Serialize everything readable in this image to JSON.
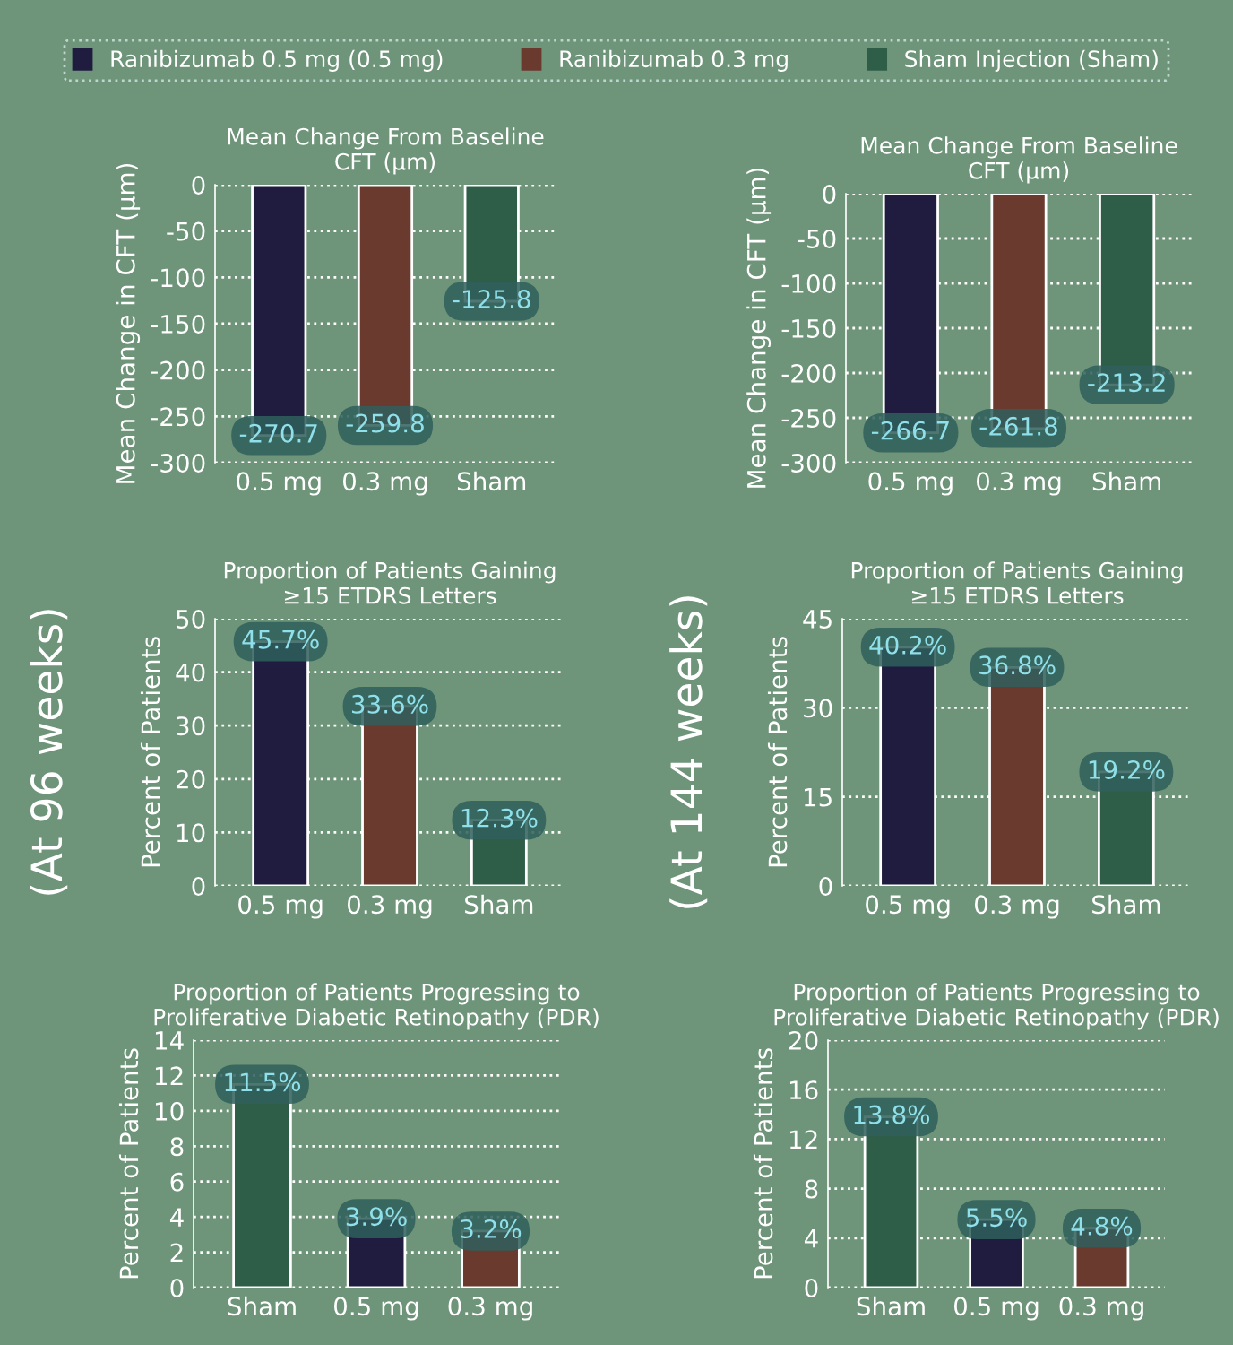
{
  "chart_data": [
    {
      "type": "bar",
      "title": "Mean Change From Baseline\nCFT (µm)",
      "ylabel": "Mean Change in CFT (µm)",
      "categories": [
        "0.5 mg",
        "0.3 mg",
        "Sham"
      ],
      "series": [
        {
          "name": "Ranibizumab 0.5 mg (0.5 mg)",
          "color": "#1f1c3f",
          "values": [
            -270.7,
            null,
            null
          ],
          "value_labels": [
            "-270.7",
            null,
            null
          ]
        },
        {
          "name": "Ranibizumab 0.3 mg",
          "color": "#6a3a2f",
          "values": [
            null,
            -259.8,
            null
          ],
          "value_labels": [
            null,
            "-259.8",
            null
          ]
        },
        {
          "name": "Sham Injection (Sham)",
          "color": "#2e5e48",
          "values": [
            null,
            null,
            -125.8
          ],
          "value_labels": [
            null,
            null,
            "-125.8"
          ]
        }
      ],
      "ylim": [
        -300,
        0
      ],
      "yticks": [
        -300,
        -250,
        -200,
        -150,
        -100,
        -50,
        0
      ],
      "grid": "y",
      "legend": "top"
    },
    {
      "type": "bar",
      "title": "Mean Change From Baseline\nCFT (µm)",
      "ylabel": "Mean Change in CFT (µm)",
      "categories": [
        "0.5 mg",
        "0.3 mg",
        "Sham"
      ],
      "series": [
        {
          "color": "#1f1c3f",
          "values": [
            -266.7,
            null,
            null
          ],
          "value_labels": [
            "-266.7",
            null,
            null
          ]
        },
        {
          "color": "#6a3a2f",
          "values": [
            null,
            -261.8,
            null
          ],
          "value_labels": [
            null,
            "-261.8",
            null
          ]
        },
        {
          "color": "#2e5e48",
          "values": [
            null,
            null,
            -213.2
          ],
          "value_labels": [
            null,
            null,
            "-213.2"
          ]
        }
      ],
      "ylim": [
        -300,
        0
      ],
      "yticks": [
        -300,
        -250,
        -200,
        -150,
        -100,
        -50,
        0
      ],
      "grid": "y"
    },
    {
      "type": "bar",
      "title": "Proportion of Patients Gaining\n≥15 ETDRS Letters",
      "ylabel": "Percent of Patients",
      "categories": [
        "0.5 mg",
        "0.3 mg",
        "Sham"
      ],
      "series": [
        {
          "color": "#1f1c3f",
          "values": [
            45.7,
            null,
            null
          ],
          "value_labels": [
            "45.7%",
            null,
            null
          ]
        },
        {
          "color": "#6a3a2f",
          "values": [
            null,
            33.6,
            null
          ],
          "value_labels": [
            null,
            "33.6%",
            null
          ]
        },
        {
          "color": "#2e5e48",
          "values": [
            null,
            null,
            12.3
          ],
          "value_labels": [
            null,
            null,
            "12.3%"
          ]
        }
      ],
      "ylim": [
        0,
        50
      ],
      "yticks": [
        0,
        10,
        20,
        30,
        40,
        50
      ],
      "grid": "y",
      "annotations": [
        "(At 96 weeks)"
      ]
    },
    {
      "type": "bar",
      "title": "Proportion of Patients Gaining\n≥15 ETDRS Letters",
      "ylabel": "Percent of Patients",
      "categories": [
        "0.5 mg",
        "0.3 mg",
        "Sham"
      ],
      "series": [
        {
          "color": "#1f1c3f",
          "values": [
            40.2,
            null,
            null
          ],
          "value_labels": [
            "40.2%",
            null,
            null
          ]
        },
        {
          "color": "#6a3a2f",
          "values": [
            null,
            36.8,
            null
          ],
          "value_labels": [
            null,
            "36.8%",
            null
          ]
        },
        {
          "color": "#2e5e48",
          "values": [
            null,
            null,
            19.2
          ],
          "value_labels": [
            null,
            null,
            "19.2%"
          ]
        }
      ],
      "ylim": [
        0,
        45
      ],
      "yticks": [
        0,
        15,
        30,
        45
      ],
      "grid": "y",
      "annotations": [
        "(At 144 weeks)"
      ]
    },
    {
      "type": "bar",
      "title": "Proportion of Patients Progressing to\nProliferative Diabetic Retinopathy (PDR)",
      "ylabel": "Percent of Patients",
      "categories": [
        "Sham",
        "0.5 mg",
        "0.3 mg"
      ],
      "series": [
        {
          "color": "#2e5e48",
          "values": [
            11.5,
            null,
            null
          ],
          "value_labels": [
            "11.5%",
            null,
            null
          ]
        },
        {
          "color": "#1f1c3f",
          "values": [
            null,
            3.9,
            null
          ],
          "value_labels": [
            null,
            "3.9%",
            null
          ]
        },
        {
          "color": "#6a3a2f",
          "values": [
            null,
            null,
            3.2
          ],
          "value_labels": [
            null,
            null,
            "3.2%"
          ]
        }
      ],
      "ylim": [
        0,
        14
      ],
      "yticks": [
        0,
        2,
        4,
        6,
        8,
        10,
        12,
        14
      ],
      "grid": "y"
    },
    {
      "type": "bar",
      "title": "Proportion of Patients Progressing to\nProliferative Diabetic Retinopathy (PDR)",
      "ylabel": "Percent of Patients",
      "categories": [
        "Sham",
        "0.5 mg",
        "0.3 mg"
      ],
      "series": [
        {
          "color": "#2e5e48",
          "values": [
            13.8,
            null,
            null
          ],
          "value_labels": [
            "13.8%",
            null,
            null
          ]
        },
        {
          "color": "#1f1c3f",
          "values": [
            null,
            5.5,
            null
          ],
          "value_labels": [
            null,
            "5.5%",
            null
          ]
        },
        {
          "color": "#6a3a2f",
          "values": [
            null,
            null,
            4.8
          ],
          "value_labels": [
            null,
            null,
            "4.8%"
          ]
        }
      ],
      "ylim": [
        0,
        20
      ],
      "yticks": [
        0,
        4,
        8,
        12,
        16,
        20
      ],
      "grid": "y"
    }
  ]
}
